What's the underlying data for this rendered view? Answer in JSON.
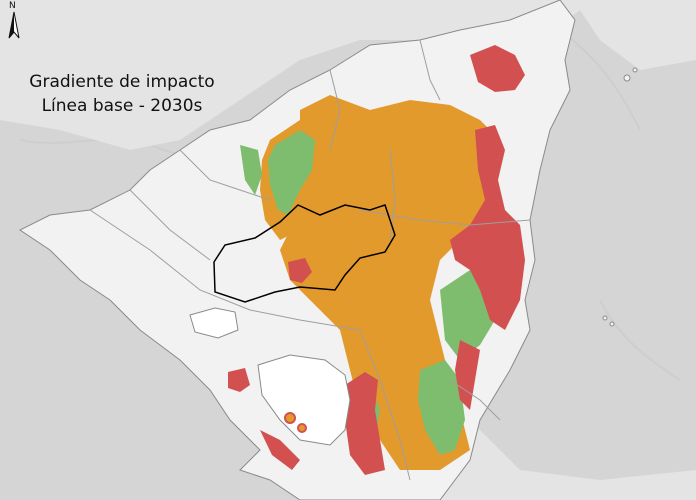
{
  "map": {
    "title_line1": "Gradiente de impacto",
    "title_line2": "Línea base - 2030s",
    "north_label": "N"
  },
  "colors": {
    "background": "#d9d9d9",
    "land": "#f2f2f2",
    "lake": "#ffffff",
    "orange": "#e39a2d",
    "red": "#d2504f",
    "green": "#7ebd6e",
    "boundary": "#9e9e9e",
    "highlight": "#000000"
  },
  "legend_icons": [
    "north-arrow-icon"
  ]
}
